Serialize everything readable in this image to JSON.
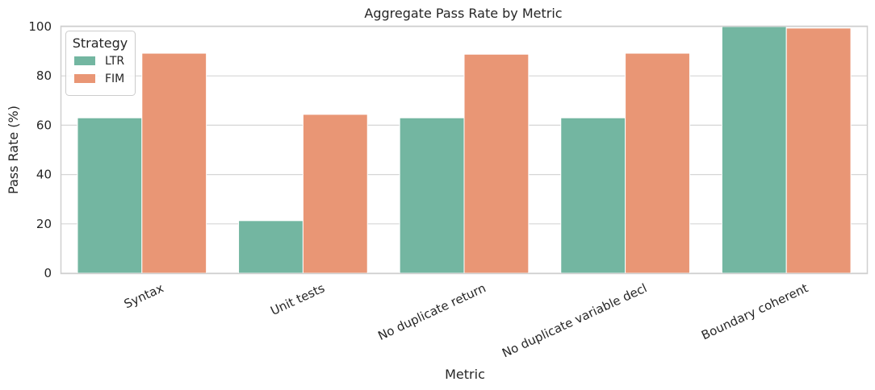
{
  "chart_data": {
    "type": "bar",
    "title": "Aggregate Pass Rate by Metric",
    "xlabel": "Metric",
    "ylabel": "Pass Rate (%)",
    "ylim": [
      0,
      100
    ],
    "yticks": [
      0,
      20,
      40,
      60,
      80,
      100
    ],
    "categories": [
      "Syntax",
      "Unit tests",
      "No duplicate return",
      "No duplicate variable decl",
      "Boundary coherent"
    ],
    "series": [
      {
        "name": "LTR",
        "color": "#73b6a1",
        "values": [
          63,
          21.3,
          63,
          63,
          100
        ]
      },
      {
        "name": "FIM",
        "color": "#e99675",
        "values": [
          89.2,
          64.4,
          88.8,
          89.2,
          99.4
        ]
      }
    ],
    "legend": {
      "title": "Strategy",
      "position": "top-left"
    },
    "grid": "y"
  }
}
